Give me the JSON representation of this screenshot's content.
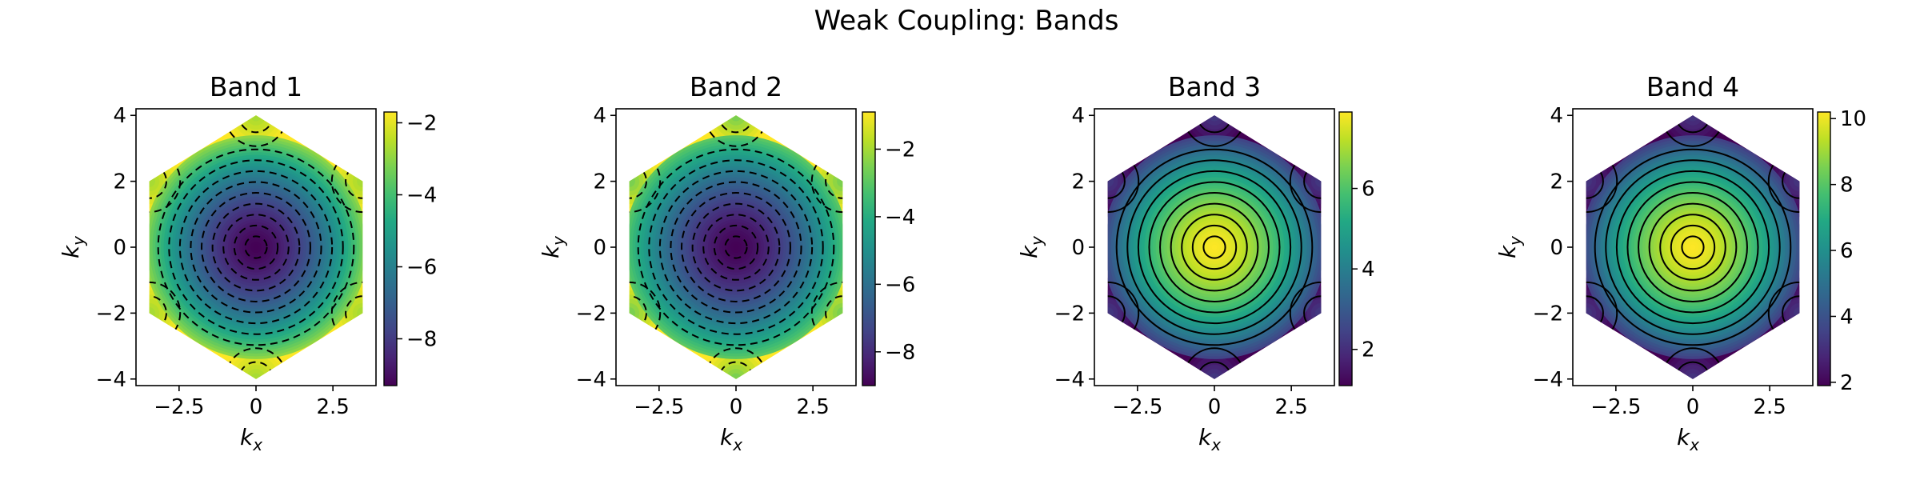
{
  "figure": {
    "title": "Weak Coupling: Bands"
  },
  "chart_data": [
    {
      "type": "heatmap",
      "title": "Band 1",
      "xlabel": "k_x",
      "ylabel": "k_y",
      "xlim": [
        -3.9,
        3.9
      ],
      "ylim": [
        -4.2,
        4.2
      ],
      "x_ticks": [
        -2.5,
        0.0,
        2.5
      ],
      "y_ticks": [
        -4,
        -2,
        0,
        2,
        4
      ],
      "colorbar": {
        "min": -9.3,
        "max": -1.7,
        "ticks": [
          -8,
          -6,
          -4,
          -2
        ]
      },
      "colormap": "viridis",
      "contour_style": "dashed",
      "center_value": -9.3,
      "corner_value": -1.7,
      "boundary_value": -3.0
    },
    {
      "type": "heatmap",
      "title": "Band 2",
      "xlabel": "k_x",
      "ylabel": "k_y",
      "xlim": [
        -3.9,
        3.9
      ],
      "ylim": [
        -4.2,
        4.2
      ],
      "x_ticks": [
        -2.5,
        0.0,
        2.5
      ],
      "y_ticks": [
        -4,
        -2,
        0,
        2,
        4
      ],
      "colorbar": {
        "min": -9.0,
        "max": -0.9,
        "ticks": [
          -8,
          -6,
          -4,
          -2
        ]
      },
      "colormap": "viridis",
      "contour_style": "dashed",
      "center_value": -9.0,
      "corner_value": -0.9,
      "boundary_value": -3.0
    },
    {
      "type": "heatmap",
      "title": "Band 3",
      "xlabel": "k_x",
      "ylabel": "k_y",
      "xlim": [
        -3.9,
        3.9
      ],
      "ylim": [
        -4.2,
        4.2
      ],
      "x_ticks": [
        -2.5,
        0.0,
        2.5
      ],
      "y_ticks": [
        -4,
        -2,
        0,
        2,
        4
      ],
      "colorbar": {
        "min": 1.1,
        "max": 7.9,
        "ticks": [
          2,
          4,
          6
        ]
      },
      "colormap": "viridis",
      "contour_style": "solid",
      "center_value": 7.9,
      "corner_value": 1.1,
      "boundary_value": 2.5
    },
    {
      "type": "heatmap",
      "title": "Band 4",
      "xlabel": "k_x",
      "ylabel": "k_y",
      "xlim": [
        -3.9,
        3.9
      ],
      "ylim": [
        -4.2,
        4.2
      ],
      "x_ticks": [
        -2.5,
        0.0,
        2.5
      ],
      "y_ticks": [
        -4,
        -2,
        0,
        2,
        4
      ],
      "colorbar": {
        "min": 1.9,
        "max": 10.2,
        "ticks": [
          2,
          4,
          6,
          8,
          10
        ]
      },
      "colormap": "viridis",
      "contour_style": "solid",
      "center_value": 10.2,
      "corner_value": 1.9,
      "boundary_value": 3.5
    }
  ]
}
